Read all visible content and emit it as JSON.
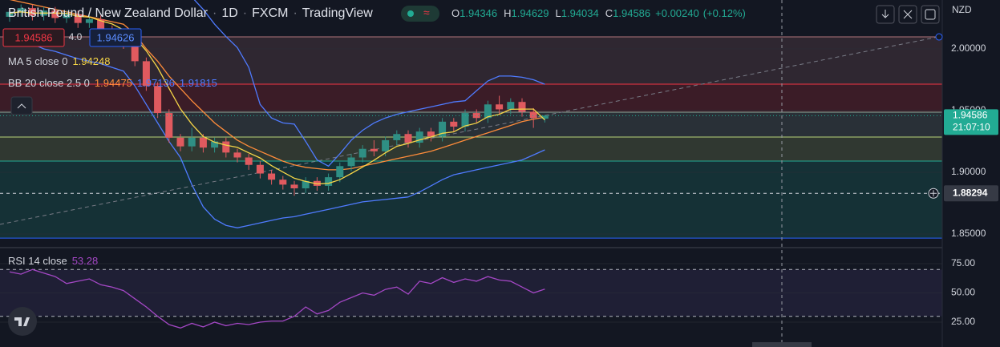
{
  "chart_data": [
    {
      "type": "candlestick",
      "title": "British Pound / New Zealand Dollar",
      "interval": "1D",
      "source": "FXCM",
      "platform": "TradingView",
      "currency": "NZD",
      "ohlc_labels": [
        "O",
        "H",
        "L",
        "C"
      ],
      "ohlc": [
        1.94346,
        1.94629,
        1.94034,
        1.94586
      ],
      "change": "+0.00240",
      "change_percent": "(+0.12%)",
      "trade": {
        "sell": 1.94586,
        "spread": "4.0",
        "buy": 1.94626
      },
      "open": [
        2.026,
        2.03,
        2.033,
        2.027,
        2.031,
        2.025,
        2.028,
        2.021,
        2.024,
        2.016,
        2.012,
        2.004,
        1.99,
        1.97,
        1.948,
        1.928,
        1.921,
        1.928,
        1.92,
        1.925,
        1.916,
        1.912,
        1.906,
        1.899,
        1.894,
        1.89,
        1.887,
        1.893,
        1.889,
        1.896,
        1.905,
        1.912,
        1.919,
        1.917,
        1.926,
        1.931,
        1.924,
        1.933,
        1.929,
        1.941,
        1.937,
        1.948,
        1.944,
        1.955,
        1.951,
        1.957,
        1.949,
        1.94346
      ],
      "high": [
        2.033,
        2.036,
        2.036,
        2.034,
        2.034,
        2.031,
        2.031,
        2.027,
        2.027,
        2.019,
        2.015,
        2.007,
        1.993,
        1.973,
        1.951,
        1.931,
        1.936,
        1.931,
        1.928,
        1.928,
        1.919,
        1.915,
        1.909,
        1.902,
        1.897,
        1.893,
        1.896,
        1.896,
        1.899,
        1.908,
        1.915,
        1.922,
        1.926,
        1.929,
        1.934,
        1.934,
        1.936,
        1.936,
        1.944,
        1.944,
        1.951,
        1.951,
        1.958,
        1.962,
        1.96,
        1.96,
        1.952,
        1.94629
      ],
      "low": [
        2.022,
        2.026,
        2.023,
        2.023,
        2.021,
        2.021,
        2.017,
        2.017,
        2.012,
        2.008,
        2.0,
        1.986,
        1.966,
        1.944,
        1.924,
        1.917,
        1.917,
        1.916,
        1.916,
        1.912,
        1.908,
        1.902,
        1.895,
        1.89,
        1.886,
        1.881,
        1.883,
        1.885,
        1.885,
        1.892,
        1.901,
        1.908,
        1.913,
        1.913,
        1.922,
        1.92,
        1.92,
        1.925,
        1.925,
        1.933,
        1.933,
        1.94,
        1.94,
        1.947,
        1.947,
        1.945,
        1.936,
        1.94034
      ],
      "close": [
        2.03,
        2.033,
        2.027,
        2.031,
        2.025,
        2.028,
        2.021,
        2.024,
        2.016,
        2.012,
        2.004,
        1.99,
        1.97,
        1.948,
        1.928,
        1.921,
        1.928,
        1.92,
        1.925,
        1.916,
        1.912,
        1.906,
        1.899,
        1.894,
        1.89,
        1.887,
        1.893,
        1.889,
        1.896,
        1.905,
        1.912,
        1.919,
        1.917,
        1.926,
        1.931,
        1.924,
        1.933,
        1.929,
        1.941,
        1.937,
        1.948,
        1.944,
        1.955,
        1.951,
        1.957,
        1.949,
        1.944,
        1.94586
      ],
      "up_color": "#2f8f84",
      "down_color": "#e05a5f",
      "indicators": [
        {
          "name": "MA 5 close 0",
          "lines": [
            {
              "color": "#f5d547",
              "last": 1.94248,
              "values": [
                2.029,
                2.03,
                2.029,
                2.029,
                2.029,
                2.0288,
                2.0264,
                2.0258,
                2.0228,
                2.0202,
                2.0154,
                2.0092,
                1.9984,
                1.9848,
                1.968,
                1.9514,
                1.939,
                1.929,
                1.9244,
                1.922,
                1.9202,
                1.9158,
                1.9116,
                1.9054,
                1.9002,
                1.8952,
                1.8926,
                1.8906,
                1.891,
                1.894,
                1.899,
                1.9042,
                1.9098,
                1.9158,
                1.921,
                1.9234,
                1.9262,
                1.9286,
                1.9316,
                1.9328,
                1.9376,
                1.9398,
                1.945,
                1.947,
                1.951,
                1.9512,
                1.9512,
                1.94248
              ]
            }
          ]
        },
        {
          "name": "BB 20 close 2.5 0",
          "lines": [
            {
              "color": "#ff8c3a",
              "last": 1.94475,
              "values": [
                2.04,
                2.038,
                2.036,
                2.034,
                2.032,
                2.03,
                2.028,
                2.026,
                2.024,
                2.022,
                2.02,
                2.012,
                2.0,
                1.99,
                1.978,
                1.968,
                1.958,
                1.949,
                1.94,
                1.933,
                1.926,
                1.921,
                1.917,
                1.913,
                1.909,
                1.906,
                1.904,
                1.903,
                1.902,
                1.902,
                1.903,
                1.905,
                1.907,
                1.909,
                1.911,
                1.913,
                1.915,
                1.917,
                1.92,
                1.923,
                1.926,
                1.929,
                1.932,
                1.935,
                1.938,
                1.941,
                1.943,
                1.94475
              ]
            },
            {
              "color": "#4f7bff",
              "last": 1.97136,
              "values": [
                2.07,
                2.07,
                2.07,
                2.07,
                2.07,
                2.07,
                2.07,
                2.07,
                2.07,
                2.07,
                2.07,
                2.07,
                2.068,
                2.064,
                2.058,
                2.05,
                2.042,
                2.032,
                2.02,
                2.01,
                2.001,
                1.985,
                1.955,
                1.944,
                1.94,
                1.939,
                1.925,
                1.91,
                1.905,
                1.915,
                1.926,
                1.934,
                1.94,
                1.944,
                1.947,
                1.949,
                1.951,
                1.953,
                1.955,
                1.957,
                1.958,
                1.966,
                1.974,
                1.978,
                1.978,
                1.977,
                1.975,
                1.97136
              ]
            },
            {
              "color": "#4f7bff",
              "last": 1.91815,
              "values": [
                2.01,
                2.006,
                2.004,
                2.0,
                1.998,
                1.995,
                1.992,
                1.99,
                1.988,
                1.985,
                1.982,
                1.97,
                1.955,
                1.94,
                1.925,
                1.912,
                1.89,
                1.872,
                1.862,
                1.857,
                1.855,
                1.857,
                1.859,
                1.861,
                1.863,
                1.864,
                1.866,
                1.868,
                1.87,
                1.872,
                1.874,
                1.876,
                1.877,
                1.878,
                1.879,
                1.88,
                1.884,
                1.889,
                1.894,
                1.898,
                1.9,
                1.902,
                1.904,
                1.906,
                1.908,
                1.91,
                1.914,
                1.91815
              ]
            }
          ]
        }
      ],
      "levels": [
        2.0097,
        1.9714,
        1.9487,
        1.9286,
        1.9091,
        1.8467
      ],
      "level_colors": [
        "#b2757c",
        "#f23645",
        "#8fa89a",
        "#b7d37a",
        "#22ab94",
        "#2962ff"
      ],
      "trendline": [
        1.8578,
        2.0097
      ],
      "last_price": 1.94586,
      "countdown": "21:07:10",
      "crosshair": 1.88294,
      "ylim": [
        1.8396,
        2.0396
      ],
      "yticks": [
        {
          "value": 2.0,
          "label": "2.00000"
        },
        {
          "value": 1.95,
          "label": "1.95000"
        },
        {
          "value": 1.9,
          "label": "1.90000"
        },
        {
          "value": 1.85,
          "label": "1.85000"
        }
      ],
      "grid": true
    },
    {
      "type": "line",
      "title": "RSI 14 close",
      "color": "#a347c4",
      "last": 53.28,
      "values": [
        68,
        66,
        70,
        67,
        64,
        58,
        60,
        62,
        57,
        55,
        52,
        45,
        38,
        30,
        23,
        20,
        24,
        21,
        25,
        22,
        24,
        23,
        25,
        26,
        26,
        30,
        38,
        32,
        35,
        42,
        46,
        50,
        48,
        53,
        55,
        49,
        60,
        58,
        63,
        59,
        62,
        60,
        64,
        61,
        60,
        55,
        50,
        53.28
      ],
      "hlines": [
        70,
        30
      ],
      "ylim": [
        3.8,
        88
      ],
      "yticks": [
        {
          "value": 75,
          "label": "75.00"
        },
        {
          "value": 50,
          "label": "50.00"
        },
        {
          "value": 25,
          "label": "25.00"
        }
      ],
      "grid": true
    }
  ]
}
